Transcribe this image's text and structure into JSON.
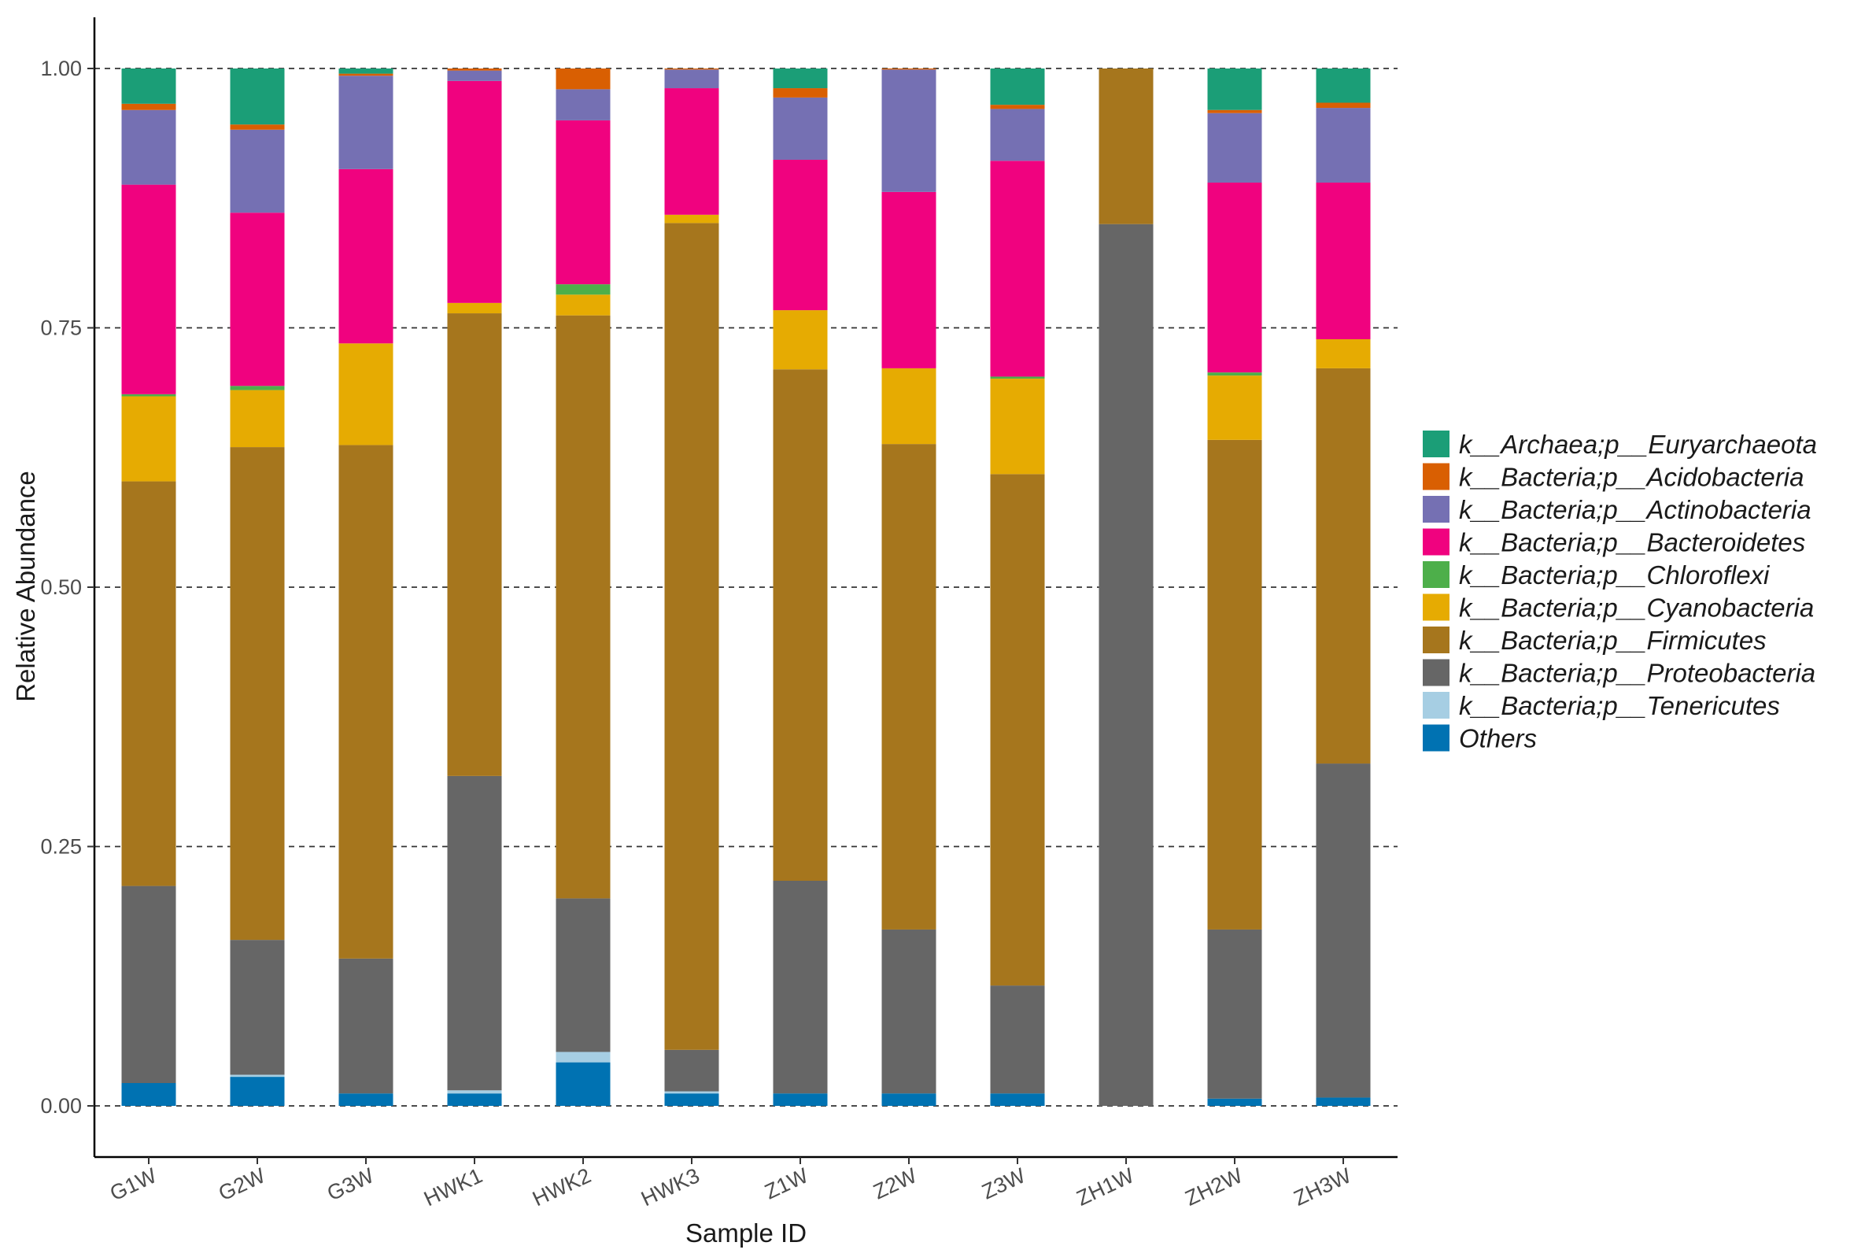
{
  "chart_data": {
    "type": "bar",
    "stacked": true,
    "title": "",
    "xlabel": "Sample ID",
    "ylabel": "Relative Abundance",
    "ylim": [
      -0.05,
      1.05
    ],
    "yticks": [
      0.0,
      0.25,
      0.5,
      0.75,
      1.0
    ],
    "ytick_labels": [
      "0.00",
      "0.25",
      "0.50",
      "0.75",
      "1.00"
    ],
    "grid": "horizontal dashed at ticks",
    "legend_position": "right",
    "categories": [
      "G1W",
      "G2W",
      "G3W",
      "HWK1",
      "HWK2",
      "HWK3",
      "Z1W",
      "Z2W",
      "Z3W",
      "ZH1W",
      "ZH2W",
      "ZH3W"
    ],
    "series": [
      {
        "name": "Others",
        "color": "#0072b2",
        "values": [
          0.022,
          0.028,
          0.012,
          0.012,
          0.042,
          0.012,
          0.012,
          0.012,
          0.012,
          0.0,
          0.007,
          0.008
        ]
      },
      {
        "name": "k__Bacteria;p__Tenericutes",
        "color": "#a6cee3",
        "values": [
          0.0,
          0.002,
          0.0,
          0.003,
          0.01,
          0.002,
          0.0,
          0.0,
          0.0,
          0.0,
          0.0,
          0.0
        ]
      },
      {
        "name": "k__Bacteria;p__Proteobacteria",
        "color": "#666666",
        "values": [
          0.19,
          0.13,
          0.13,
          0.303,
          0.148,
          0.04,
          0.205,
          0.158,
          0.104,
          0.85,
          0.163,
          0.322
        ]
      },
      {
        "name": "k__Bacteria;p__Firmicutes",
        "color": "#a6761d",
        "values": [
          0.39,
          0.475,
          0.495,
          0.446,
          0.562,
          0.797,
          0.493,
          0.468,
          0.493,
          0.15,
          0.472,
          0.381
        ]
      },
      {
        "name": "k__Bacteria;p__Cyanobacteria",
        "color": "#e6ab02",
        "values": [
          0.082,
          0.055,
          0.098,
          0.01,
          0.02,
          0.008,
          0.057,
          0.073,
          0.092,
          0.0,
          0.062,
          0.028
        ]
      },
      {
        "name": "k__Bacteria;p__Chloroflexi",
        "color": "#4daf4a",
        "values": [
          0.002,
          0.004,
          0.0,
          0.0,
          0.01,
          0.0,
          0.0,
          0.0,
          0.002,
          0.0,
          0.003,
          0.0
        ]
      },
      {
        "name": "k__Bacteria;p__Bacteroidetes",
        "color": "#f0027f",
        "values": [
          0.202,
          0.167,
          0.168,
          0.214,
          0.158,
          0.122,
          0.145,
          0.17,
          0.208,
          0.0,
          0.183,
          0.151
        ]
      },
      {
        "name": "k__Bacteria;p__Actinobacteria",
        "color": "#7570b3",
        "values": [
          0.072,
          0.08,
          0.09,
          0.01,
          0.03,
          0.018,
          0.06,
          0.118,
          0.05,
          0.0,
          0.067,
          0.072
        ]
      },
      {
        "name": "k__Bacteria;p__Acidobacteria",
        "color": "#d95f02",
        "values": [
          0.006,
          0.005,
          0.002,
          0.002,
          0.02,
          0.001,
          0.009,
          0.001,
          0.004,
          0.0,
          0.003,
          0.005
        ]
      },
      {
        "name": "k__Archaea;p__Euryarchaeota",
        "color": "#1b9e77",
        "values": [
          0.034,
          0.054,
          0.005,
          0.0,
          0.0,
          0.0,
          0.019,
          0.0,
          0.035,
          0.0,
          0.04,
          0.033
        ]
      }
    ],
    "legend_order": [
      "k__Archaea;p__Euryarchaeota",
      "k__Bacteria;p__Acidobacteria",
      "k__Bacteria;p__Actinobacteria",
      "k__Bacteria;p__Bacteroidetes",
      "k__Bacteria;p__Chloroflexi",
      "k__Bacteria;p__Cyanobacteria",
      "k__Bacteria;p__Firmicutes",
      "k__Bacteria;p__Proteobacteria",
      "k__Bacteria;p__Tenericutes",
      "Others"
    ]
  }
}
